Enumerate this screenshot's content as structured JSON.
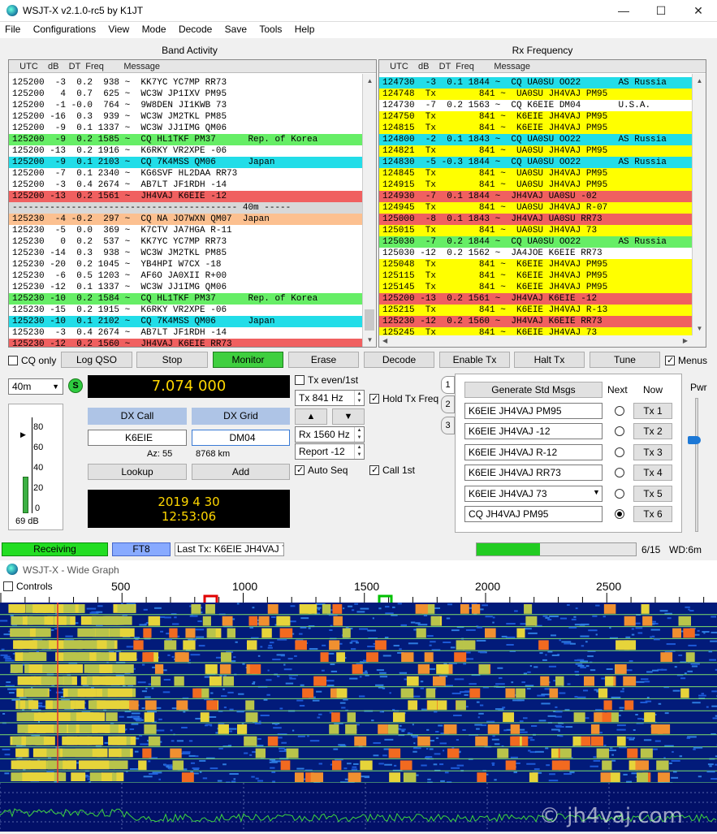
{
  "window": {
    "title": "WSJT-X   v2.1.0-rc5   by K1JT",
    "min": "—",
    "max": "☐",
    "close": "✕"
  },
  "menu": [
    "File",
    "Configurations",
    "View",
    "Mode",
    "Decode",
    "Save",
    "Tools",
    "Help"
  ],
  "band_activity": {
    "title": "Band Activity",
    "header": "   UTC    dB    DT  Freq        Message",
    "rows": [
      {
        "t": "125200  -3  0.2  938 ~  KK7YC YC7MP RR73",
        "bg": "#ffffff"
      },
      {
        "t": "125200   4  0.7  625 ~  WC3W JP1IXV PM95",
        "bg": "#ffffff"
      },
      {
        "t": "125200  -1 -0.0  764 ~  9W8DEN JI1KWB 73",
        "bg": "#ffffff"
      },
      {
        "t": "125200 -16  0.3  939 ~  WC3W JM2TKL PM85",
        "bg": "#ffffff"
      },
      {
        "t": "125200  -9  0.1 1337 ~  WC3W JJ1IMG QM06",
        "bg": "#ffffff"
      },
      {
        "t": "125200  -9  0.2 1585 ~  CQ HL1TKF PM37      Rep. of Korea",
        "bg": "#66ee66"
      },
      {
        "t": "125200 -13  0.2 1916 ~  K6RKY VR2XPE -06",
        "bg": "#ffffff"
      },
      {
        "t": "125200  -9  0.1 2103 ~  CQ 7K4MSS QM06      Japan",
        "bg": "#22dde8"
      },
      {
        "t": "125200  -7  0.1 2340 ~  KG6SVF HL2DAA RR73",
        "bg": "#ffffff"
      },
      {
        "t": "125200  -3  0.4 2674 ~  AB7LT JF1RDH -14",
        "bg": "#ffffff"
      },
      {
        "t": "125200 -13  0.2 1561 ~  JH4VAJ K6EIE -12",
        "bg": "#f06060"
      },
      {
        "t": "------------------------------------------ 40m -----",
        "bg": "#d8d8d8"
      },
      {
        "t": "125230  -4 -0.2  297 ~  CQ NA JO7WXN QM07  Japan",
        "bg": "#fcc090"
      },
      {
        "t": "125230  -5  0.0  369 ~  K7CTV JA7HGA R-11",
        "bg": "#ffffff"
      },
      {
        "t": "125230   0  0.2  537 ~  KK7YC YC7MP RR73",
        "bg": "#ffffff"
      },
      {
        "t": "125230 -14  0.3  938 ~  WC3W JM2TKL PM85",
        "bg": "#ffffff"
      },
      {
        "t": "125230 -20  0.2 1045 ~  YB4HPI W7CX -18",
        "bg": "#ffffff"
      },
      {
        "t": "125230  -6  0.5 1203 ~  AF6O JA0XII R+00",
        "bg": "#ffffff"
      },
      {
        "t": "125230 -12  0.1 1337 ~  WC3W JJ1IMG QM06",
        "bg": "#ffffff"
      },
      {
        "t": "125230 -10  0.2 1584 ~  CQ HL1TKF PM37      Rep. of Korea",
        "bg": "#66ee66"
      },
      {
        "t": "125230 -15  0.2 1915 ~  K6RKY VR2XPE -06",
        "bg": "#ffffff"
      },
      {
        "t": "125230 -10  0.1 2102 ~  CQ 7K4MSS QM06      Japan",
        "bg": "#22dde8"
      },
      {
        "t": "125230  -3  0.4 2674 ~  AB7LT JF1RDH -14",
        "bg": "#ffffff"
      },
      {
        "t": "125230 -12  0.2 1560 ~  JH4VAJ K6EIE RR73",
        "bg": "#f06060"
      }
    ]
  },
  "rx_frequency": {
    "title": "Rx Frequency",
    "header": "   UTC    dB    DT  Freq        Message",
    "rows": [
      {
        "t": "124730  -3  0.1 1844 ~  CQ UA0SU OO22       AS Russia",
        "bg": "#22dde8"
      },
      {
        "t": "124748  Tx        841 ~  UA0SU JH4VAJ PM95",
        "bg": "#ffff00"
      },
      {
        "t": "124730  -7  0.2 1563 ~  CQ K6EIE DM04       U.S.A.",
        "bg": "#ffffff"
      },
      {
        "t": "124750  Tx        841 ~  K6EIE JH4VAJ PM95",
        "bg": "#ffff00"
      },
      {
        "t": "124815  Tx        841 ~  K6EIE JH4VAJ PM95",
        "bg": "#ffff00"
      },
      {
        "t": "124800  -2  0.1 1843 ~  CQ UA0SU OO22       AS Russia",
        "bg": "#22dde8"
      },
      {
        "t": "124821  Tx        841 ~  UA0SU JH4VAJ PM95",
        "bg": "#ffff00"
      },
      {
        "t": "124830  -5 -0.3 1844 ~  CQ UA0SU OO22       AS Russia",
        "bg": "#22dde8"
      },
      {
        "t": "124845  Tx        841 ~  UA0SU JH4VAJ PM95",
        "bg": "#ffff00"
      },
      {
        "t": "124915  Tx        841 ~  UA0SU JH4VAJ PM95",
        "bg": "#ffff00"
      },
      {
        "t": "124930  -7  0.1 1844 ~  JH4VAJ UA0SU -02",
        "bg": "#f06060"
      },
      {
        "t": "124945  Tx        841 ~  UA0SU JH4VAJ R-07",
        "bg": "#ffff00"
      },
      {
        "t": "125000  -8  0.1 1843 ~  JH4VAJ UA0SU RR73",
        "bg": "#f06060"
      },
      {
        "t": "125015  Tx        841 ~  UA0SU JH4VAJ 73",
        "bg": "#ffff00"
      },
      {
        "t": "125030  -7  0.2 1844 ~  CQ UA0SU OO22       AS Russia",
        "bg": "#66ee66"
      },
      {
        "t": "125030 -12  0.2 1562 ~  JA4JOE K6EIE RR73",
        "bg": "#ffffff"
      },
      {
        "t": "125048  Tx        841 ~  K6EIE JH4VAJ PM95",
        "bg": "#ffff00"
      },
      {
        "t": "125115  Tx        841 ~  K6EIE JH4VAJ PM95",
        "bg": "#ffff00"
      },
      {
        "t": "125145  Tx        841 ~  K6EIE JH4VAJ PM95",
        "bg": "#ffff00"
      },
      {
        "t": "125200 -13  0.2 1561 ~  JH4VAJ K6EIE -12",
        "bg": "#f06060"
      },
      {
        "t": "125215  Tx        841 ~  K6EIE JH4VAJ R-13",
        "bg": "#ffff00"
      },
      {
        "t": "125230 -12  0.2 1560 ~  JH4VAJ K6EIE RR73",
        "bg": "#f06060"
      },
      {
        "t": "125245  Tx        841 ~  K6EIE JH4VAJ 73",
        "bg": "#ffff00"
      }
    ]
  },
  "buttons": {
    "cq_only": "CQ only",
    "log_qso": "Log QSO",
    "stop": "Stop",
    "monitor": "Monitor",
    "erase": "Erase",
    "decode": "Decode",
    "enable_tx": "Enable Tx",
    "halt_tx": "Halt Tx",
    "tune": "Tune",
    "menus": "Menus"
  },
  "band": {
    "value": "40m",
    "s": "S"
  },
  "dial_freq": "7.074 000",
  "meter": {
    "ticks": [
      "80",
      "60",
      "40",
      "20",
      "0"
    ],
    "db": "69 dB",
    "level_fraction": 0.69
  },
  "dx": {
    "call_label": "DX Call",
    "grid_label": "DX Grid",
    "call": "K6EIE",
    "grid": "DM04",
    "az": "Az: 55",
    "dist": "8768 km",
    "lookup": "Lookup",
    "add": "Add"
  },
  "clock": {
    "date": "2019 4 30",
    "time": "12:53:06"
  },
  "tx_controls": {
    "tx_even": "Tx even/1st",
    "tx_freq": "Tx  841  Hz",
    "hold_tx": "Hold Tx Freq",
    "rx_freq": "Rx  1560  Hz",
    "report": "Report -12",
    "auto_seq": "Auto Seq",
    "call_1st": "Call 1st"
  },
  "tabs": [
    "1",
    "2",
    "3"
  ],
  "std_msgs": {
    "generate": "Generate Std Msgs",
    "next": "Next",
    "now": "Now",
    "items": [
      {
        "msg": "K6EIE JH4VAJ PM95",
        "btn": "Tx 1",
        "checked": false
      },
      {
        "msg": "K6EIE JH4VAJ -12",
        "btn": "Tx 2",
        "checked": false
      },
      {
        "msg": "K6EIE JH4VAJ R-12",
        "btn": "Tx 3",
        "checked": false
      },
      {
        "msg": "K6EIE JH4VAJ RR73",
        "btn": "Tx 4",
        "checked": false
      },
      {
        "msg": "K6EIE JH4VAJ 73",
        "btn": "Tx 5",
        "checked": false
      },
      {
        "msg": "CQ JH4VAJ PM95",
        "btn": "Tx 6",
        "checked": true
      }
    ]
  },
  "pwr": "Pwr",
  "status": {
    "receiving": "Receiving",
    "mode": "FT8",
    "last_tx": "Last Tx: K6EIE JH4VAJ 73",
    "progress": "6/15",
    "progress_fraction": 0.4,
    "wd": "WD:6m"
  },
  "wide_graph": {
    "title": "WSJT-X - Wide Graph",
    "controls": "Controls",
    "ticks": [
      "500",
      "1000",
      "1500",
      "2000",
      "2500"
    ],
    "watermark": "© jh4vaj.com"
  },
  "colors": {
    "monitor_green": "#3fcf3f",
    "receiving_green": "#22dd22",
    "ft8_blue": "#88aaff"
  }
}
